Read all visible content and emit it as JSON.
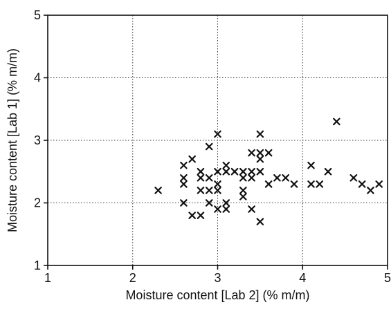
{
  "chart_data": {
    "type": "scatter",
    "title": "",
    "xlabel": "Moisture content [Lab 2] (% m/m)",
    "ylabel": "Moisture content [Lab 1] (% m/m)",
    "xlim": [
      1,
      5
    ],
    "ylim": [
      1,
      5
    ],
    "x_ticks": [
      1,
      2,
      3,
      4,
      5
    ],
    "y_ticks": [
      1,
      2,
      3,
      4,
      5
    ],
    "x_tick_labels": [
      "1",
      "2",
      "3",
      "4",
      "5"
    ],
    "y_tick_labels": [
      "1",
      "2",
      "3",
      "4",
      "5"
    ],
    "grid": true,
    "marker": "x",
    "marker_color": "#111111",
    "series": [
      {
        "points": [
          [
            2.3,
            2.2
          ],
          [
            2.6,
            2.6
          ],
          [
            2.6,
            2.4
          ],
          [
            2.6,
            2.3
          ],
          [
            2.6,
            2.0
          ],
          [
            2.7,
            2.7
          ],
          [
            2.7,
            1.8
          ],
          [
            2.8,
            2.5
          ],
          [
            2.8,
            2.4
          ],
          [
            2.8,
            2.2
          ],
          [
            2.8,
            1.8
          ],
          [
            2.9,
            2.9
          ],
          [
            2.9,
            2.4
          ],
          [
            2.9,
            2.2
          ],
          [
            2.9,
            2.0
          ],
          [
            3.0,
            3.1
          ],
          [
            3.0,
            2.5
          ],
          [
            3.0,
            2.3
          ],
          [
            3.0,
            2.2
          ],
          [
            3.0,
            1.9
          ],
          [
            3.1,
            2.6
          ],
          [
            3.1,
            2.5
          ],
          [
            3.1,
            2.0
          ],
          [
            3.1,
            1.9
          ],
          [
            3.2,
            2.5
          ],
          [
            3.3,
            2.5
          ],
          [
            3.3,
            2.4
          ],
          [
            3.3,
            2.2
          ],
          [
            3.3,
            2.1
          ],
          [
            3.4,
            2.8
          ],
          [
            3.4,
            2.5
          ],
          [
            3.4,
            2.4
          ],
          [
            3.4,
            1.9
          ],
          [
            3.5,
            3.1
          ],
          [
            3.5,
            2.8
          ],
          [
            3.5,
            2.7
          ],
          [
            3.5,
            2.5
          ],
          [
            3.5,
            1.7
          ],
          [
            3.6,
            2.8
          ],
          [
            3.6,
            2.3
          ],
          [
            3.7,
            2.4
          ],
          [
            3.8,
            2.4
          ],
          [
            3.9,
            2.3
          ],
          [
            4.1,
            2.6
          ],
          [
            4.1,
            2.3
          ],
          [
            4.2,
            2.3
          ],
          [
            4.3,
            2.5
          ],
          [
            4.4,
            3.3
          ],
          [
            4.6,
            2.4
          ],
          [
            4.7,
            2.3
          ],
          [
            4.8,
            2.2
          ],
          [
            4.9,
            2.3
          ]
        ]
      }
    ]
  }
}
